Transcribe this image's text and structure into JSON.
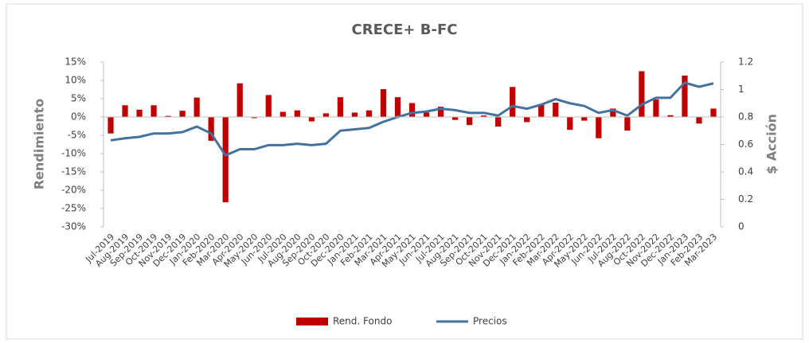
{
  "chart_data": {
    "type": "bar_line",
    "title": "CRECE+ B-FC",
    "y_label": "Rendimiento",
    "y2_label": "$ Acción",
    "categories": [
      "Jul-2019",
      "Aug-2019",
      "Sep-2019",
      "Oct-2019",
      "Nov-2019",
      "Dec-2019",
      "Jan-2020",
      "Feb-2020",
      "Mar-2020",
      "Apr-2020",
      "May-2020",
      "Jun-2020",
      "Jul-2020",
      "Aug-2020",
      "Sep-2020",
      "Oct-2020",
      "Dec-2020",
      "Jan-2021",
      "Feb-2021",
      "Mar-2021",
      "Apr-2021",
      "May-2021",
      "Jun-2021",
      "Jul-2021",
      "Aug-2021",
      "Sep-2021",
      "Oct-2021",
      "Nov-2021",
      "Dec-2021",
      "Jan-2022",
      "Feb-2022",
      "Mar-2022",
      "Apr-2022",
      "May-2022",
      "Jun-2022",
      "Jul-2022",
      "Aug-2022",
      "Oct-2022",
      "Nov-2022",
      "Dec-2022",
      "Jan-2023",
      "Feb-2023",
      "Mar-2023"
    ],
    "series": [
      {
        "name": "Rend. Fondo",
        "color": "#c00000",
        "type": "bar",
        "axis": "y",
        "values": [
          -4.5,
          3.2,
          2,
          3.2,
          0.3,
          1.7,
          5.3,
          -6.5,
          -23.3,
          9.2,
          -0.3,
          6,
          1.4,
          1.8,
          -1.2,
          1.0,
          5.4,
          1.2,
          1.8,
          7.6,
          5.4,
          3.8,
          1.2,
          2.8,
          -0.8,
          -2.2,
          0.4,
          -2.6,
          8.2,
          -1.4,
          3.4,
          3.9,
          -3.5,
          -1,
          -5.8,
          2.3,
          -3.7,
          12.5,
          4.8,
          0.5,
          11.3,
          -1.8,
          2.3
        ]
      },
      {
        "name": "Precios",
        "color": "#4472a0",
        "type": "line",
        "axis": "y2",
        "values": [
          0.63,
          0.645,
          0.655,
          0.68,
          0.68,
          0.69,
          0.73,
          0.68,
          0.52,
          0.565,
          0.565,
          0.595,
          0.595,
          0.605,
          0.595,
          0.605,
          0.7,
          0.71,
          0.72,
          0.765,
          0.8,
          0.83,
          0.84,
          0.86,
          0.85,
          0.83,
          0.83,
          0.81,
          0.88,
          0.86,
          0.89,
          0.93,
          0.9,
          0.88,
          0.83,
          0.85,
          0.81,
          0.89,
          0.94,
          0.94,
          1.05,
          1.02,
          1.045
        ]
      }
    ],
    "ylim": [
      -30,
      15
    ],
    "yticks": [
      {
        "value": -30,
        "label": "-30%"
      },
      {
        "value": -25,
        "label": "-25%"
      },
      {
        "value": -20,
        "label": "-20%"
      },
      {
        "value": -15,
        "label": "-15%"
      },
      {
        "value": -10,
        "label": "-10%"
      },
      {
        "value": -5,
        "label": "-5%"
      },
      {
        "value": 0,
        "label": "0%"
      },
      {
        "value": 5,
        "label": "5%"
      },
      {
        "value": 10,
        "label": "10%"
      },
      {
        "value": 15,
        "label": "15%"
      }
    ],
    "y2lim": [
      0,
      1.2
    ],
    "y2ticks": [
      0,
      0.2,
      0.4,
      0.6,
      0.8,
      1,
      1.2
    ],
    "legend": "bottom"
  }
}
